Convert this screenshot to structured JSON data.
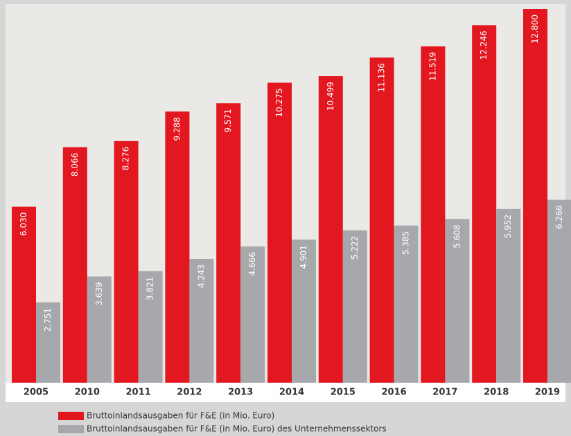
{
  "chart_data": {
    "type": "bar",
    "categories": [
      "2005",
      "2010",
      "2011",
      "2012",
      "2013",
      "2014",
      "2015",
      "2016",
      "2017",
      "2018",
      "2019"
    ],
    "series": [
      {
        "name": "Bruttoinlandsausgaben für F&E (in Mio. Euro)",
        "color": "#e3171f",
        "values": [
          6030,
          8066,
          8276,
          9288,
          9571,
          10275,
          10499,
          11136,
          11519,
          12246,
          12800
        ],
        "value_labels": [
          "6.030",
          "8.066",
          "8.276",
          "9.288",
          "9.571",
          "10.275",
          "10.499",
          "11.136",
          "11.519",
          "12.246",
          "12.800"
        ]
      },
      {
        "name": "Bruttoinlandsausgaben für F&E (in Mio. Euro) des Unternehmenssektors",
        "color": "#a6a8ab",
        "values": [
          2751,
          3639,
          3821,
          4243,
          4666,
          4901,
          5222,
          5385,
          5608,
          5952,
          6266
        ],
        "value_labels": [
          "2.751",
          "3.639",
          "3.821",
          "4.243",
          "4.666",
          "4.901",
          "5.222",
          "5.385",
          "5.608",
          "5.952",
          "6.266"
        ]
      }
    ]
  }
}
